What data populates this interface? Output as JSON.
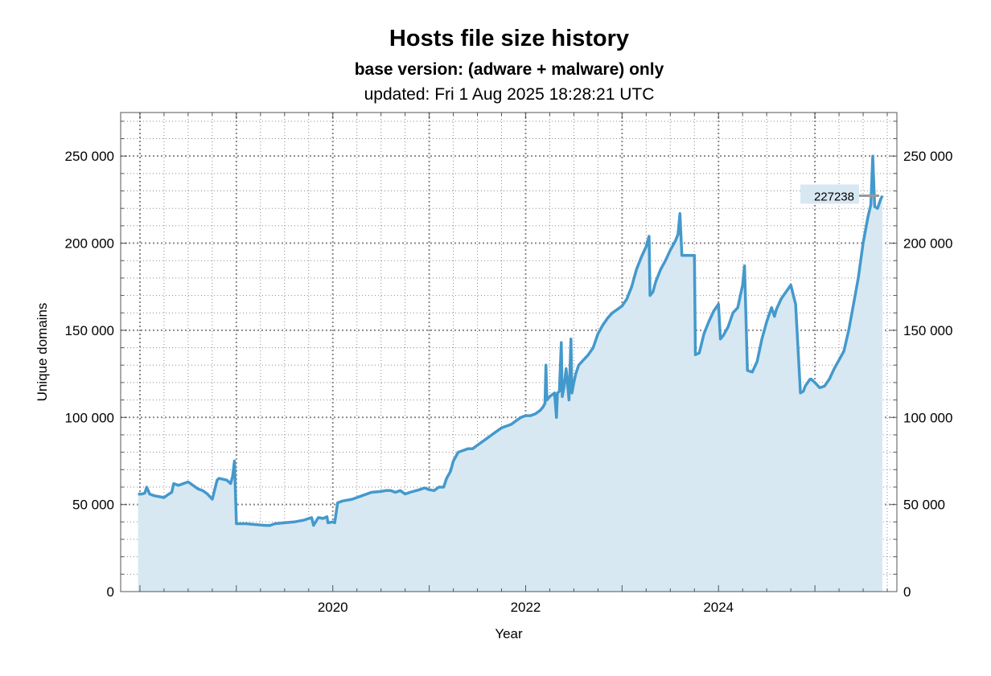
{
  "chart_data": {
    "type": "area",
    "title": "Hosts file size history",
    "subtitle": "base version: (adware + malware) only",
    "updated": "updated: Fri 1 Aug 2025 18:28:21 UTC",
    "xlabel": "Year",
    "ylabel": "Unique domains",
    "xlim": [
      2017.8,
      2025.85
    ],
    "ylim": [
      0,
      275000
    ],
    "x_ticks": [
      {
        "value": 2020,
        "label": "2020"
      },
      {
        "value": 2022,
        "label": "2022"
      },
      {
        "value": 2024,
        "label": "2024"
      }
    ],
    "y_ticks": [
      {
        "value": 0,
        "label": "0"
      },
      {
        "value": 50000,
        "label": "50 000"
      },
      {
        "value": 100000,
        "label": "100 000"
      },
      {
        "value": 150000,
        "label": "150 000"
      },
      {
        "value": 200000,
        "label": "200 000"
      },
      {
        "value": 250000,
        "label": "250 000"
      }
    ],
    "grid": true,
    "latest_label": "227238",
    "colors": {
      "line": "#4499cc",
      "fill": "#d7e8f3",
      "grid": "#8a8a8a",
      "label_bg": "#d7e8f3"
    },
    "series": [
      {
        "x": [
          2017.98,
          2018.02,
          2018.05,
          2018.07,
          2018.1,
          2018.15,
          2018.2,
          2018.25,
          2018.3,
          2018.33,
          2018.35,
          2018.4,
          2018.45,
          2018.5,
          2018.55,
          2018.6,
          2018.65,
          2018.7,
          2018.75,
          2018.8,
          2018.82,
          2018.9,
          2018.94,
          2018.96,
          2018.98,
          2019.0,
          2019.02,
          2019.1,
          2019.2,
          2019.3,
          2019.35,
          2019.4,
          2019.5,
          2019.6,
          2019.65,
          2019.7,
          2019.75,
          2019.78,
          2019.8,
          2019.85,
          2019.9,
          2019.94,
          2019.95,
          2020.0,
          2020.02,
          2020.05,
          2020.1,
          2020.2,
          2020.3,
          2020.4,
          2020.5,
          2020.55,
          2020.6,
          2020.65,
          2020.7,
          2020.75,
          2020.8,
          2020.9,
          2020.95,
          2021.0,
          2021.05,
          2021.1,
          2021.15,
          2021.18,
          2021.2,
          2021.22,
          2021.25,
          2021.3,
          2021.35,
          2021.4,
          2021.45,
          2021.5,
          2021.55,
          2021.6,
          2021.65,
          2021.7,
          2021.75,
          2021.8,
          2021.85,
          2021.9,
          2021.95,
          2022.0,
          2022.05,
          2022.1,
          2022.15,
          2022.18,
          2022.2,
          2022.21,
          2022.22,
          2022.25,
          2022.3,
          2022.32,
          2022.33,
          2022.35,
          2022.37,
          2022.38,
          2022.4,
          2022.42,
          2022.45,
          2022.47,
          2022.48,
          2022.5,
          2022.52,
          2022.55,
          2022.6,
          2022.65,
          2022.7,
          2022.75,
          2022.8,
          2022.85,
          2022.9,
          2022.95,
          2023.0,
          2023.05,
          2023.1,
          2023.15,
          2023.2,
          2023.25,
          2023.28,
          2023.29,
          2023.32,
          2023.35,
          2023.4,
          2023.45,
          2023.5,
          2023.55,
          2023.58,
          2023.6,
          2023.62,
          2023.65,
          2023.7,
          2023.75,
          2023.76,
          2023.8,
          2023.85,
          2023.9,
          2023.95,
          2024.0,
          2024.02,
          2024.05,
          2024.1,
          2024.15,
          2024.2,
          2024.25,
          2024.27,
          2024.3,
          2024.35,
          2024.4,
          2024.45,
          2024.5,
          2024.55,
          2024.58,
          2024.6,
          2024.65,
          2024.7,
          2024.75,
          2024.8,
          2024.85,
          2024.88,
          2024.9,
          2024.95,
          2024.96,
          2025.0,
          2025.05,
          2025.1,
          2025.15,
          2025.2,
          2025.25,
          2025.3,
          2025.35,
          2025.4,
          2025.45,
          2025.5,
          2025.55,
          2025.58,
          2025.6,
          2025.62,
          2025.65,
          2025.68,
          2025.7
        ],
        "y": [
          56000,
          56000,
          56500,
          60000,
          56000,
          55000,
          54500,
          54000,
          56000,
          57000,
          62000,
          61000,
          62000,
          63000,
          61000,
          59000,
          58000,
          56000,
          53000,
          64000,
          65000,
          64000,
          62000,
          66000,
          75000,
          39000,
          39000,
          39000,
          38500,
          38000,
          38000,
          39000,
          39500,
          40000,
          40500,
          41000,
          42000,
          42500,
          38000,
          42500,
          42000,
          43000,
          39500,
          40000,
          39500,
          51000,
          52000,
          53000,
          55000,
          57000,
          57500,
          58000,
          58000,
          57000,
          58000,
          56000,
          57000,
          58500,
          59500,
          58500,
          58000,
          60000,
          60000,
          65000,
          67000,
          69000,
          75000,
          80000,
          81000,
          82000,
          82000,
          84000,
          86000,
          88000,
          90000,
          92000,
          94000,
          95000,
          96000,
          98000,
          100000,
          101000,
          101000,
          102000,
          104000,
          106000,
          108000,
          130000,
          110000,
          112000,
          114000,
          100000,
          114000,
          115000,
          143000,
          112000,
          118000,
          128000,
          110000,
          145000,
          114000,
          120000,
          125000,
          130000,
          133000,
          136000,
          140000,
          148000,
          153000,
          157000,
          160000,
          162000,
          164000,
          168000,
          175000,
          185000,
          192000,
          198000,
          204000,
          170000,
          172000,
          178000,
          185000,
          190000,
          196000,
          201000,
          205000,
          217000,
          193000,
          193000,
          193000,
          193000,
          136000,
          137000,
          148000,
          155000,
          161000,
          165000,
          145000,
          147000,
          152000,
          160000,
          163000,
          176000,
          187000,
          127000,
          126000,
          132000,
          145000,
          155000,
          163000,
          158000,
          162000,
          168000,
          172000,
          176000,
          165000,
          114000,
          115000,
          118000,
          122000,
          122000,
          120000,
          117000,
          118000,
          122000,
          128000,
          133000,
          138000,
          150000,
          165000,
          180000,
          200000,
          215000,
          222000,
          250000,
          221000,
          220000,
          225000,
          227238
        ]
      }
    ]
  }
}
